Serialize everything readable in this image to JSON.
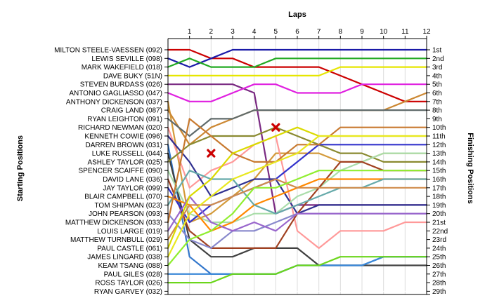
{
  "chart_data": {
    "type": "line",
    "title": "",
    "xlabel": "Laps",
    "ylabel_left": "Starting Positions",
    "ylabel_right": "Finishing Positions",
    "laps": [
      1,
      2,
      3,
      4,
      5,
      6,
      7,
      8,
      9,
      10,
      11,
      12
    ],
    "x_tick_labels": [
      "1",
      "2",
      "3",
      "4",
      "5",
      "6",
      "7",
      "8",
      "9",
      "10",
      "11",
      "12"
    ],
    "y_range": [
      1,
      29
    ],
    "y_inverted": true,
    "grid": true,
    "starting_labels": [
      "MILTON STEELE-VAESSEN (092)",
      "LEWIS SEVILLE (098)",
      "MARK WAKEFIELD (018)",
      "DAVE BUKY (51N)",
      "STEVEN BURDASS (026)",
      "ANTONIO GAGLIASSO (047)",
      "ANTHONY DICKENSON (037)",
      "CRAIG LAND (087)",
      "RYAN LEIGHTON (091)",
      "RICHARD NEWMAN (020)",
      "KENNETH COWIE (096)",
      "DARREN BROWN (031)",
      "LUKE RUSSELL (044)",
      "ASHLEY TAYLOR (025)",
      "SPENCER SCAIFFE (090)",
      "DAVID LANE (036)",
      "JAY TAYLOR (099)",
      "BLAIR CAMPBELL (070)",
      "TOM SHIPMAN (023)",
      "JOHN PEARSON (093)",
      "MATTHEW DICKENSON (033)",
      "LOUIS LARGE (019)",
      "MATTHEW TURNBULL (029)",
      "PAUL CASTLE (061)",
      "JAMES LINGARD (038)",
      "KEAM TSANG (088)",
      "PAUL GILES (028)",
      "ROSS TAYLOR (026)",
      "RYAN GARVEY (032)"
    ],
    "finishing_labels": [
      "1st",
      "2nd",
      "3rd",
      "4th",
      "5th",
      "6th",
      "7th",
      "8th",
      "9th",
      "10th",
      "11th",
      "12th",
      "13th",
      "14th",
      "15th",
      "16th",
      "17th",
      "18th",
      "19th",
      "20th",
      "21st",
      "22nd",
      "23rd",
      "24th",
      "25th",
      "26th",
      "27th",
      "28th",
      "29th"
    ],
    "series": [
      {
        "start": 1,
        "color": "#cc0000",
        "positions": [
          1,
          1,
          2,
          2,
          3,
          3,
          3,
          3,
          4,
          5,
          6,
          7,
          7
        ]
      },
      {
        "start": 2,
        "color": "#1a1aa8",
        "positions": [
          2,
          3,
          2,
          1,
          1,
          1,
          1,
          1,
          1,
          1,
          1,
          1,
          1
        ]
      },
      {
        "start": 3,
        "color": "#22aa22",
        "positions": [
          3,
          2,
          3,
          3,
          3,
          2,
          2,
          2,
          2,
          2,
          2,
          2,
          2
        ]
      },
      {
        "start": 4,
        "color": "#e6e600",
        "positions": [
          4,
          4,
          4,
          4,
          4,
          4,
          4,
          4,
          3,
          3,
          3,
          3,
          3
        ]
      },
      {
        "start": 5,
        "color": "#7a2a82",
        "positions": [
          5,
          5,
          5,
          5,
          6,
          20,
          19,
          19,
          19,
          19,
          19,
          19,
          19
        ]
      },
      {
        "start": 6,
        "color": "#e020e0",
        "positions": [
          6,
          7,
          7,
          6,
          5,
          5,
          6,
          6,
          6,
          5,
          5,
          5,
          5
        ]
      },
      {
        "start": 7,
        "color": "#d49a3a",
        "positions": [
          7,
          21,
          20,
          18,
          16,
          13,
          13,
          13,
          14,
          14,
          13,
          13,
          13
        ]
      },
      {
        "start": 8,
        "color": "#cc8833",
        "positions": [
          8,
          12,
          10,
          9,
          8,
          8,
          8,
          8,
          8,
          8,
          8,
          7,
          6
        ]
      },
      {
        "start": 9,
        "color": "#606b6b",
        "positions": [
          9,
          11,
          9,
          9,
          8,
          8,
          8,
          8,
          8,
          8,
          8,
          8,
          8
        ]
      },
      {
        "start": 10,
        "color": "#ff9999",
        "positions": [
          10,
          17,
          15,
          14,
          12,
          11,
          22,
          24,
          22,
          22,
          22,
          21,
          21
        ]
      },
      {
        "start": 11,
        "color": "#303090",
        "positions": [
          11,
          14,
          18,
          17,
          16,
          16,
          20,
          19,
          19,
          19,
          19,
          19,
          19
        ]
      },
      {
        "start": 12,
        "color": "#3377cc",
        "positions": [
          12,
          25,
          27,
          27,
          27,
          27,
          26,
          26,
          26,
          26,
          25,
          25,
          25
        ]
      },
      {
        "start": 13,
        "color": "#404040",
        "positions": [
          13,
          23,
          25,
          25,
          24,
          24,
          24,
          26,
          26,
          26,
          26,
          26,
          26
        ]
      },
      {
        "start": 14,
        "color": "#8a8a30",
        "positions": [
          14,
          12,
          11,
          11,
          11,
          10,
          11,
          12,
          13,
          13,
          14,
          14,
          14
        ]
      },
      {
        "start": 15,
        "color": "#aaddaa",
        "positions": [
          15,
          20,
          21,
          21,
          20,
          20,
          18,
          17,
          15,
          14,
          13,
          13,
          13
        ]
      },
      {
        "start": 16,
        "color": "#a04020",
        "positions": [
          16,
          22,
          24,
          24,
          24,
          24,
          20,
          17,
          14,
          14,
          15,
          15,
          15
        ]
      },
      {
        "start": 17,
        "color": "#3333cc",
        "positions": [
          17,
          21,
          19,
          18,
          17,
          16,
          14,
          12,
          12,
          12,
          12,
          12,
          12
        ]
      },
      {
        "start": 18,
        "color": "#ff8800",
        "positions": [
          18,
          19,
          22,
          21,
          19,
          18,
          17,
          16,
          16,
          16,
          16,
          16,
          16
        ]
      },
      {
        "start": 19,
        "color": "#66aaaa",
        "positions": [
          19,
          15,
          16,
          16,
          19,
          20,
          19,
          18,
          17,
          17,
          16,
          16,
          16
        ]
      },
      {
        "start": 20,
        "color": "#8888cc",
        "positions": [
          20,
          23,
          24,
          22,
          22,
          21,
          20,
          20,
          20,
          20,
          20,
          20,
          20
        ]
      },
      {
        "start": 21,
        "color": "#c87a30",
        "positions": [
          21,
          9,
          11,
          13,
          14,
          14,
          12,
          12,
          10,
          10,
          10,
          10,
          10
        ]
      },
      {
        "start": 22,
        "color": "#9966cc",
        "positions": [
          22,
          18,
          21,
          22,
          21,
          22,
          20,
          20,
          20,
          20,
          20,
          20,
          20
        ]
      },
      {
        "start": 23,
        "color": "#d08c4c",
        "positions": [
          23,
          19,
          19,
          18,
          17,
          16,
          17,
          17,
          17,
          17,
          17,
          17,
          17
        ]
      },
      {
        "start": 24,
        "color": "#dada00",
        "positions": [
          24,
          18,
          16,
          13,
          12,
          11,
          10,
          11,
          11,
          11,
          11,
          11,
          11
        ]
      },
      {
        "start": 25,
        "color": "#e8e820",
        "positions": [
          25,
          20,
          18,
          16,
          15,
          14,
          13,
          11,
          11,
          11,
          11,
          11,
          11
        ]
      },
      {
        "start": 26,
        "color": "#90ee30",
        "positions": [
          26,
          23,
          22,
          20,
          17,
          17,
          16,
          15,
          15,
          15,
          15,
          15,
          15
        ]
      },
      {
        "start": 27,
        "color": "#3a88d8",
        "positions": [
          27,
          27,
          27,
          27,
          27,
          27,
          26,
          26,
          26,
          26,
          25,
          25,
          25
        ]
      },
      {
        "start": 28,
        "color": "#6bd61b",
        "positions": [
          28,
          28,
          28,
          27,
          27,
          27,
          26,
          26,
          25,
          25,
          25,
          25,
          25
        ]
      },
      {
        "start": 29,
        "color": "#ffffff",
        "positions": [
          29,
          29,
          29,
          29,
          29,
          29,
          29,
          29,
          29,
          29,
          29,
          29,
          29
        ]
      }
    ],
    "markers": [
      {
        "lap": 2,
        "position": 13,
        "color": "#cc0000",
        "shape": "x"
      },
      {
        "lap": 5,
        "position": 10,
        "color": "#cc0000",
        "shape": "x"
      }
    ]
  }
}
